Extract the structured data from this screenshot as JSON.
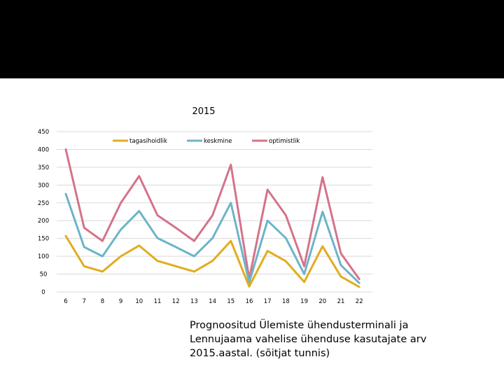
{
  "chart_data": {
    "type": "line",
    "title": "2015",
    "xlabel": "",
    "ylabel": "",
    "categories": [
      "6",
      "7",
      "8",
      "9",
      "10",
      "11",
      "12",
      "13",
      "14",
      "15",
      "16",
      "17",
      "18",
      "19",
      "20",
      "21",
      "22"
    ],
    "ylim": [
      0,
      450
    ],
    "yticks": [
      0,
      50,
      100,
      150,
      200,
      250,
      300,
      350,
      400,
      450
    ],
    "grid": "horizontal",
    "legend_position": "top",
    "series": [
      {
        "name": "tagasihoidlik",
        "color": "#E2AC1C",
        "values": [
          157,
          72,
          57,
          100,
          130,
          87,
          72,
          57,
          87,
          143,
          15,
          115,
          86,
          28,
          128,
          43,
          14
        ]
      },
      {
        "name": "keskmine",
        "color": "#6DB4C8",
        "values": [
          275,
          126,
          100,
          175,
          227,
          151,
          126,
          100,
          151,
          250,
          26,
          200,
          151,
          50,
          225,
          75,
          25
        ]
      },
      {
        "name": "optimistlik",
        "color": "#D4738A",
        "values": [
          400,
          180,
          143,
          250,
          325,
          215,
          180,
          143,
          215,
          357,
          37,
          287,
          215,
          72,
          322,
          108,
          36
        ]
      }
    ]
  },
  "caption": {
    "line1": "Prognoositud Ülemiste ühendusterminali ja",
    "line2": "Lennujaama vahelise ühenduse kasutajate arv",
    "line3": "2015.aastal. (sõitjat tunnis)"
  }
}
